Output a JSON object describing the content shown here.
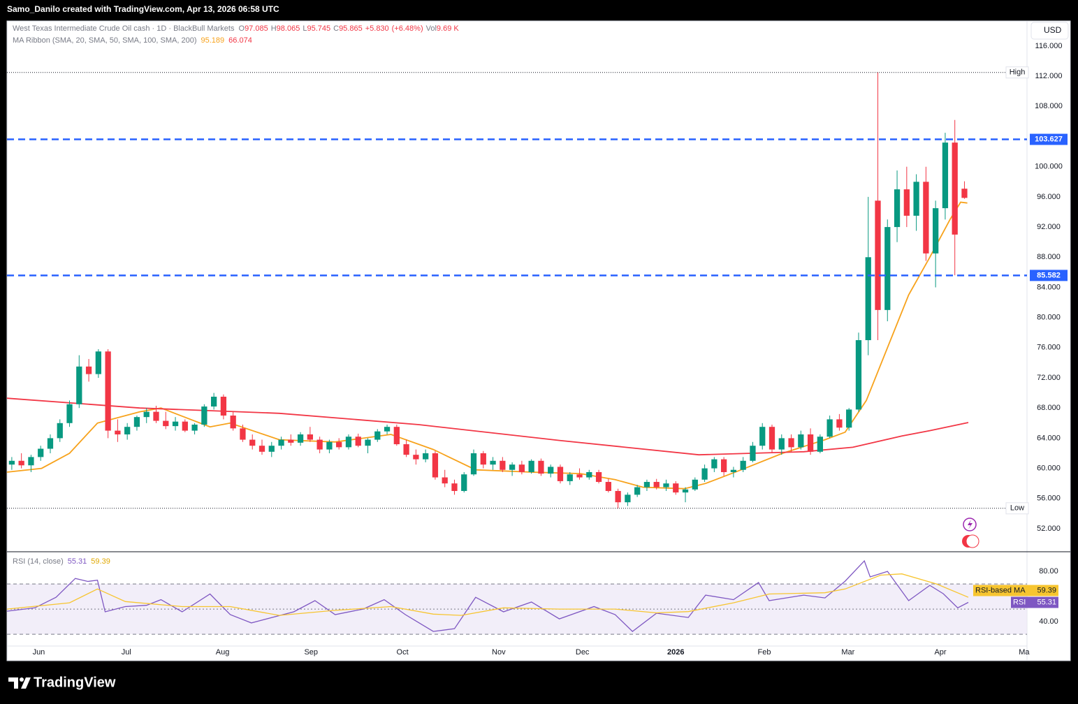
{
  "header": {
    "credit": "Samo_Danilo created with TradingView.com, Apr 13, 2026 06:58 UTC"
  },
  "brand": "TradingView",
  "chart_data": [
    {
      "type": "candlestick",
      "title": "West Texas Intermediate Crude Oil cash · 1D · BlackBull Markets",
      "currency": "USD",
      "ohlc_keys": [
        "O",
        "H",
        "L",
        "C"
      ],
      "change": "+5.830",
      "change_pct": "(+6.48%)",
      "volume_key": "Vol",
      "volume": "9.69 K",
      "ma_label": "MA Ribbon (SMA, 20, SMA, 50, SMA, 100, SMA, 200)",
      "up_color": "#089981",
      "down_color": "#f23645",
      "ohlc": [
        [
          60.5,
          61.5,
          59.8,
          61.0
        ],
        [
          61.0,
          62.0,
          60.0,
          60.4
        ],
        [
          60.4,
          61.8,
          59.5,
          61.5
        ],
        [
          61.5,
          63.0,
          61.0,
          62.6
        ],
        [
          62.6,
          64.5,
          62.0,
          64.0
        ],
        [
          64.0,
          66.5,
          63.5,
          66.0
        ],
        [
          66.0,
          69.0,
          65.5,
          68.5
        ],
        [
          68.5,
          75.0,
          68.0,
          73.5
        ],
        [
          73.5,
          74.5,
          71.5,
          72.5
        ],
        [
          72.5,
          75.8,
          72.0,
          75.5
        ],
        [
          75.5,
          75.8,
          64.0,
          65.0
        ],
        [
          65.0,
          66.5,
          63.5,
          64.5
        ],
        [
          64.5,
          66.0,
          63.8,
          65.5
        ],
        [
          65.5,
          67.0,
          65.0,
          66.8
        ],
        [
          66.8,
          68.0,
          66.0,
          67.5
        ],
        [
          67.5,
          68.3,
          66.0,
          66.3
        ],
        [
          66.3,
          67.5,
          65.2,
          65.6
        ],
        [
          65.6,
          66.8,
          65.0,
          66.2
        ],
        [
          66.2,
          66.5,
          64.8,
          65.0
        ],
        [
          65.0,
          66.0,
          64.5,
          65.8
        ],
        [
          65.8,
          68.5,
          65.5,
          68.2
        ],
        [
          68.2,
          70.0,
          67.8,
          69.5
        ],
        [
          69.5,
          69.8,
          66.5,
          67.0
        ],
        [
          67.0,
          67.5,
          65.0,
          65.3
        ],
        [
          65.3,
          65.8,
          63.5,
          63.8
        ],
        [
          63.8,
          64.5,
          62.5,
          63.0
        ],
        [
          63.0,
          63.8,
          61.8,
          62.2
        ],
        [
          62.2,
          63.5,
          61.5,
          63.0
        ],
        [
          63.0,
          64.2,
          62.5,
          63.8
        ],
        [
          63.8,
          64.5,
          63.0,
          63.4
        ],
        [
          63.4,
          64.8,
          63.0,
          64.5
        ],
        [
          64.5,
          65.5,
          63.5,
          63.8
        ],
        [
          63.8,
          64.2,
          62.0,
          62.5
        ],
        [
          62.5,
          63.8,
          62.0,
          63.5
        ],
        [
          63.5,
          64.0,
          62.5,
          62.8
        ],
        [
          62.8,
          64.5,
          62.5,
          64.2
        ],
        [
          64.2,
          64.6,
          62.8,
          63.0
        ],
        [
          63.0,
          64.0,
          62.0,
          63.8
        ],
        [
          63.8,
          65.2,
          63.5,
          64.9
        ],
        [
          64.9,
          65.8,
          64.5,
          65.5
        ],
        [
          65.5,
          65.8,
          63.0,
          63.2
        ],
        [
          63.2,
          63.8,
          61.5,
          61.8
        ],
        [
          61.8,
          62.5,
          60.5,
          61.2
        ],
        [
          61.2,
          62.5,
          60.8,
          62.0
        ],
        [
          62.0,
          62.3,
          58.5,
          58.8
        ],
        [
          58.8,
          59.8,
          57.5,
          58.0
        ],
        [
          58.0,
          58.5,
          56.5,
          57.0
        ],
        [
          57.0,
          59.5,
          56.8,
          59.2
        ],
        [
          59.2,
          62.5,
          59.0,
          62.0
        ],
        [
          62.0,
          62.3,
          60.0,
          60.5
        ],
        [
          60.5,
          61.5,
          59.8,
          61.0
        ],
        [
          61.0,
          61.5,
          59.5,
          59.8
        ],
        [
          59.8,
          60.8,
          59.0,
          60.5
        ],
        [
          60.5,
          61.0,
          59.2,
          59.5
        ],
        [
          59.5,
          61.2,
          59.3,
          61.0
        ],
        [
          61.0,
          61.3,
          59.0,
          59.3
        ],
        [
          59.3,
          60.5,
          58.8,
          60.2
        ],
        [
          60.2,
          60.5,
          58.0,
          58.3
        ],
        [
          58.3,
          59.5,
          57.8,
          59.2
        ],
        [
          59.2,
          60.0,
          58.5,
          58.8
        ],
        [
          58.8,
          59.8,
          58.5,
          59.5
        ],
        [
          59.5,
          59.8,
          58.0,
          58.2
        ],
        [
          58.2,
          58.6,
          56.8,
          57.0
        ],
        [
          57.0,
          57.3,
          54.7,
          55.5
        ],
        [
          55.5,
          56.8,
          55.0,
          56.5
        ],
        [
          56.5,
          57.8,
          56.2,
          57.5
        ],
        [
          57.5,
          58.5,
          57.0,
          58.2
        ],
        [
          58.2,
          58.6,
          57.2,
          57.5
        ],
        [
          57.5,
          58.5,
          57.0,
          58.0
        ],
        [
          58.0,
          58.3,
          56.5,
          56.8
        ],
        [
          56.8,
          57.5,
          55.5,
          57.2
        ],
        [
          57.2,
          58.8,
          57.0,
          58.5
        ],
        [
          58.5,
          60.5,
          58.2,
          60.0
        ],
        [
          60.0,
          61.5,
          59.5,
          61.2
        ],
        [
          61.2,
          61.5,
          59.0,
          59.5
        ],
        [
          59.5,
          60.2,
          58.8,
          59.8
        ],
        [
          59.8,
          61.5,
          59.5,
          61.0
        ],
        [
          61.0,
          63.5,
          60.8,
          63.0
        ],
        [
          63.0,
          66.0,
          62.5,
          65.5
        ],
        [
          65.5,
          65.8,
          62.0,
          62.5
        ],
        [
          62.5,
          64.5,
          61.8,
          64.0
        ],
        [
          64.0,
          64.5,
          62.2,
          62.8
        ],
        [
          62.8,
          65.0,
          62.5,
          64.5
        ],
        [
          64.5,
          65.3,
          61.8,
          62.2
        ],
        [
          62.2,
          64.5,
          62.0,
          64.2
        ],
        [
          64.2,
          67.0,
          64.0,
          66.5
        ],
        [
          66.5,
          67.2,
          65.0,
          65.4
        ],
        [
          65.4,
          68.0,
          65.0,
          67.8
        ],
        [
          67.8,
          78.0,
          67.5,
          77.0
        ],
        [
          77.0,
          96.0,
          75.0,
          88.0
        ],
        [
          95.5,
          112.5,
          77.0,
          81.0
        ],
        [
          81.0,
          93.0,
          79.5,
          92.0
        ],
        [
          92.0,
          99.5,
          90.0,
          97.0
        ],
        [
          97.0,
          100.0,
          92.0,
          93.5
        ],
        [
          93.5,
          99.0,
          91.5,
          98.0
        ],
        [
          98.0,
          100.0,
          87.5,
          88.5
        ],
        [
          88.5,
          95.5,
          84.0,
          94.5
        ],
        [
          94.5,
          104.5,
          93.0,
          103.2
        ],
        [
          103.2,
          106.2,
          85.6,
          91.0
        ],
        [
          97.085,
          98.065,
          95.745,
          95.865
        ]
      ],
      "lines": [
        {
          "color": "#f7a21b",
          "x": [
            -0.5,
            3.1,
            6.0,
            8.9,
            13.3,
            15.5,
            20.6,
            22.7,
            27.8,
            33.6,
            39.4,
            43.8,
            48.2,
            54.0,
            59.1,
            62.7,
            65.6,
            69.9,
            72.1,
            75.8,
            80.1,
            84.5,
            86.6,
            88.8,
            91.0,
            93.2,
            95.4,
            97.5,
            98.6,
            99.3
          ],
          "values": [
            59.5,
            60,
            62,
            66,
            67.5,
            68,
            65.5,
            66,
            63.8,
            63.5,
            64.5,
            62.5,
            59.8,
            59.5,
            59.3,
            58.5,
            57.5,
            57.3,
            58,
            59.8,
            62,
            63.8,
            64.8,
            69,
            76,
            83,
            88,
            93,
            95.3,
            95.189
          ]
        },
        {
          "color": "#f23645",
          "x": [
            -0.5,
            13.3,
            27.8,
            42.3,
            56.9,
            71.4,
            82.3,
            87.4,
            92.5,
            95.4,
            99.4
          ],
          "values": [
            69.3,
            68.0,
            67.3,
            65.8,
            63.7,
            61.8,
            62.2,
            62.8,
            64.3,
            65.0,
            66.074
          ]
        }
      ],
      "levels": [
        {
          "value": 103.627,
          "color": "#2962ff"
        },
        {
          "value": 85.582,
          "color": "#2962ff"
        }
      ],
      "extremes": [
        {
          "label": "High",
          "value": 112.5
        },
        {
          "label": "Low",
          "value": 54.7
        }
      ],
      "xlim": [
        -0.5,
        105.5
      ],
      "xticks": [
        {
          "value": 2.8,
          "label": "Jun"
        },
        {
          "value": 11.9,
          "label": "Jul"
        },
        {
          "value": 21.9,
          "label": "Aug"
        },
        {
          "value": 31.1,
          "label": "Sep"
        },
        {
          "value": 40.6,
          "label": "Oct"
        },
        {
          "value": 50.6,
          "label": "Nov"
        },
        {
          "value": 59.3,
          "label": "Dec"
        },
        {
          "value": 69.0,
          "label": "2026"
        },
        {
          "value": 78.2,
          "label": "Feb"
        },
        {
          "value": 86.9,
          "label": "Mar"
        },
        {
          "value": 96.5,
          "label": "Apr"
        },
        {
          "value": 105.2,
          "label": "Ma"
        }
      ],
      "ylim": [
        48.94,
        119.33
      ],
      "yticks": [
        {
          "value": 52,
          "label": "52.000"
        },
        {
          "value": 56,
          "label": "56.000"
        },
        {
          "value": 60,
          "label": "60.000"
        },
        {
          "value": 64,
          "label": "64.000"
        },
        {
          "value": 68,
          "label": "68.000"
        },
        {
          "value": 72,
          "label": "72.000"
        },
        {
          "value": 76,
          "label": "76.000"
        },
        {
          "value": 80,
          "label": "80.000"
        },
        {
          "value": 84,
          "label": "84.000"
        },
        {
          "value": 88,
          "label": "88.000"
        },
        {
          "value": 92,
          "label": "92.000"
        },
        {
          "value": 96,
          "label": "96.000"
        },
        {
          "value": 100,
          "label": "100.000"
        },
        {
          "value": 108,
          "label": "108.000"
        },
        {
          "value": 112,
          "label": "112.000"
        },
        {
          "value": 116,
          "label": "116.000"
        }
      ]
    },
    {
      "type": "line",
      "title": "RSI (14, close)",
      "xlim": [
        -0.5,
        105.5
      ],
      "ylim": [
        20.6,
        95.6
      ],
      "yticks": [
        {
          "value": 40,
          "label": "40.00"
        },
        {
          "value": 80,
          "label": "80.00"
        }
      ],
      "bands": [
        70,
        50,
        30
      ],
      "band_color": "#ede7f6",
      "series": [
        {
          "name": "RSI",
          "color": "#7e57c2",
          "x": [
            -0.5,
            2.4,
            4.6,
            6.6,
            7.9,
            8.9,
            9.7,
            11.8,
            14.0,
            15.5,
            17.7,
            20.6,
            22.7,
            24.9,
            29.3,
            31.5,
            33.6,
            36.5,
            38.7,
            40.9,
            43.8,
            46.0,
            48.2,
            51.1,
            54.0,
            56.9,
            60.5,
            62.7,
            64.5,
            67.0,
            70.3,
            72.1,
            75.0,
            77.6,
            78.7,
            82.3,
            84.5,
            86.6,
            88.6,
            89.2,
            91.0,
            93.2,
            95.4,
            96.8,
            98.3,
            99.4
          ],
          "values": [
            48.3,
            51,
            59.4,
            74.4,
            72,
            73,
            47.8,
            52,
            53,
            57.5,
            47.8,
            62,
            45.6,
            39,
            47.8,
            56.7,
            45.6,
            50,
            57.5,
            45.6,
            32.2,
            34.4,
            59.4,
            47.8,
            55.6,
            42.2,
            52,
            45.6,
            32.2,
            46.7,
            43.3,
            61.1,
            57.5,
            71.1,
            56.7,
            61.1,
            58.9,
            72.2,
            88.3,
            75.6,
            80,
            56.7,
            68.9,
            62.2,
            51,
            55.31
          ]
        },
        {
          "name": "RSI-based MA",
          "color": "#f7c530",
          "x": [
            -0.5,
            6.0,
            8.9,
            11.8,
            17.7,
            22.7,
            27.8,
            33.6,
            39.4,
            43.8,
            46.7,
            51.1,
            56.9,
            62.7,
            67.0,
            70.3,
            75.0,
            78.7,
            84.5,
            86.6,
            90.3,
            92.5,
            96.1,
            99.4
          ],
          "values": [
            50,
            55,
            66,
            56,
            52,
            52,
            45,
            49,
            52,
            46,
            45,
            51,
            50,
            50,
            47,
            48,
            55,
            62,
            63,
            66,
            77,
            78,
            70,
            59.39
          ]
        }
      ]
    }
  ]
}
